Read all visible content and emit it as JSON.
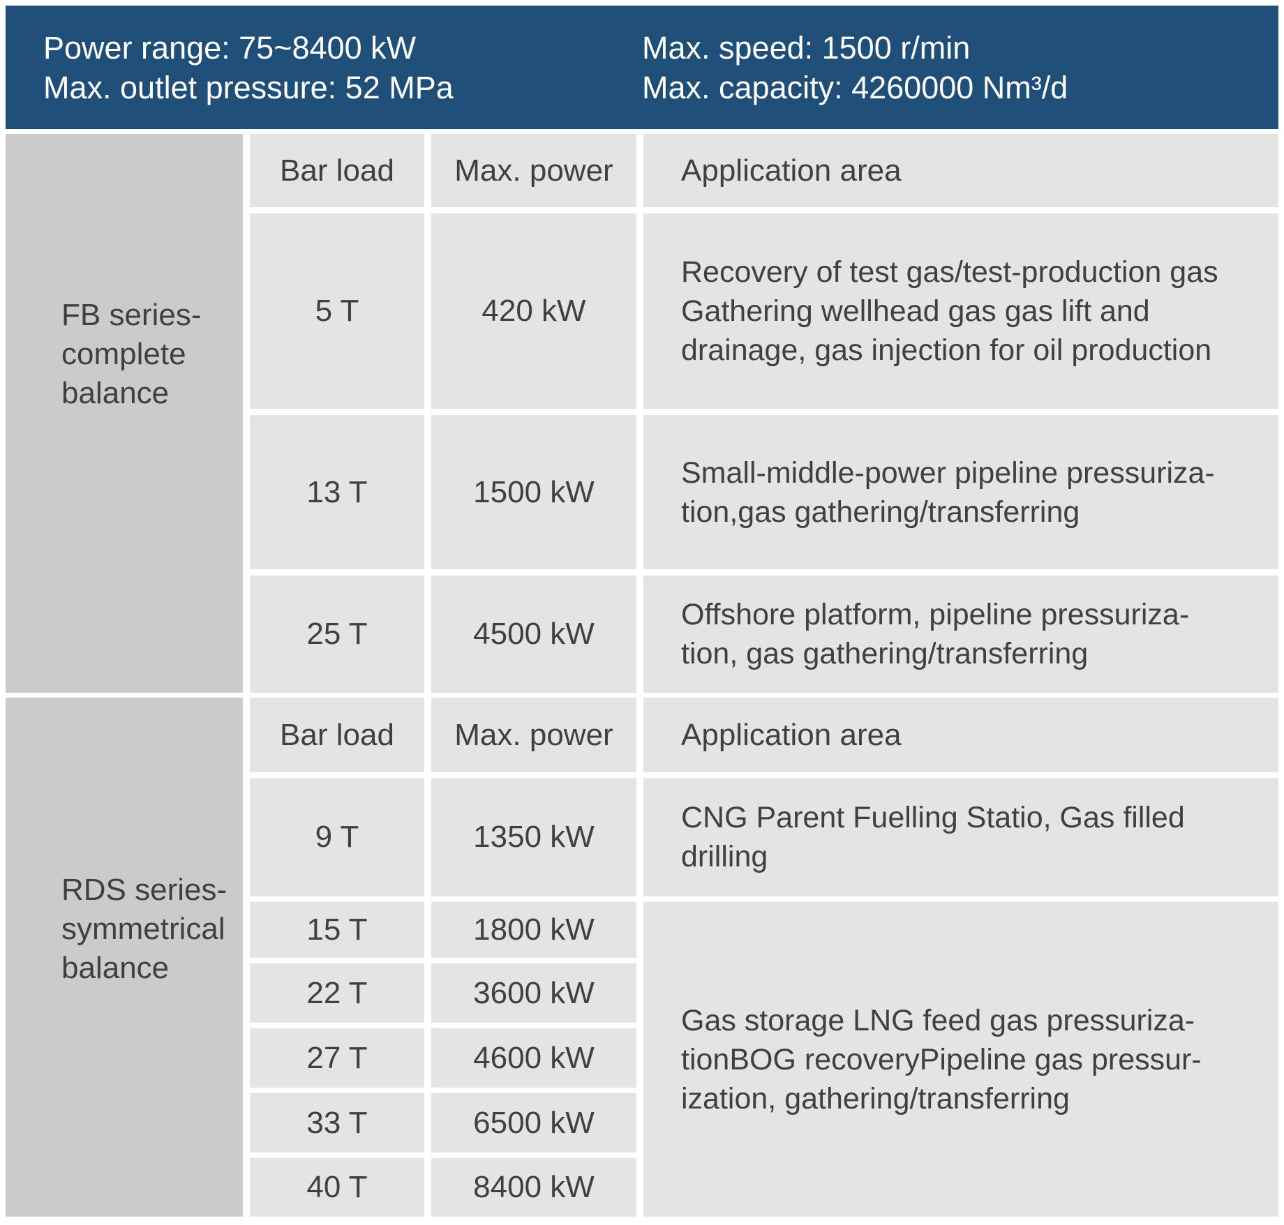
{
  "header": {
    "left": [
      "Power range: 75~8400 kW",
      "Max. outlet pressure: 52 MPa"
    ],
    "right": [
      "Max. speed: 1500 r/min",
      "Max. capacity: 4260000 Nm³/d"
    ]
  },
  "table": {
    "columns": [
      "Bar load",
      "Max. power",
      "Application area"
    ],
    "sections": [
      {
        "series": "FB series-\ncomplete\nbalance",
        "rows": [
          {
            "bar_load": "5 T",
            "max_power": "420 kW",
            "application": "Recovery of test gas/test-production gas\nGathering wellhead gas gas lift and\ndrainage, gas injection for oil production"
          },
          {
            "bar_load": "13 T",
            "max_power": "1500 kW",
            "application": "Small-middle-power pipeline pressuriza-\ntion,gas gathering/transferring"
          },
          {
            "bar_load": "25 T",
            "max_power": "4500 kW",
            "application": "Offshore platform, pipeline pressuriza-\ntion,  gas gathering/transferring"
          }
        ]
      },
      {
        "series": "RDS series-\nsymmetrical\nbalance",
        "rows": [
          {
            "bar_load": "9 T",
            "max_power": "1350 kW",
            "application": "CNG Parent Fuelling Statio, Gas filled\ndrilling"
          },
          {
            "bar_load": "15 T",
            "max_power": "1800 kW"
          },
          {
            "bar_load": "22 T",
            "max_power": "3600 kW"
          },
          {
            "bar_load": "27 T",
            "max_power": "4600 kW"
          },
          {
            "bar_load": "33 T",
            "max_power": "6500 kW"
          },
          {
            "bar_load": "40 T",
            "max_power": "8400 kW"
          }
        ],
        "merged_application": "Gas storage LNG feed gas pressuriza-\ntionBOG recoveryPipeline gas pressur-\nization, gathering/transferring"
      }
    ]
  },
  "colors": {
    "banner_bg": "#1f4e79",
    "banner_text": "#ffffff",
    "cell_bg": "#e4e4e4",
    "series_cell_bg": "#cbcbcb",
    "table_text": "#404040",
    "page_bg": "#ffffff"
  }
}
